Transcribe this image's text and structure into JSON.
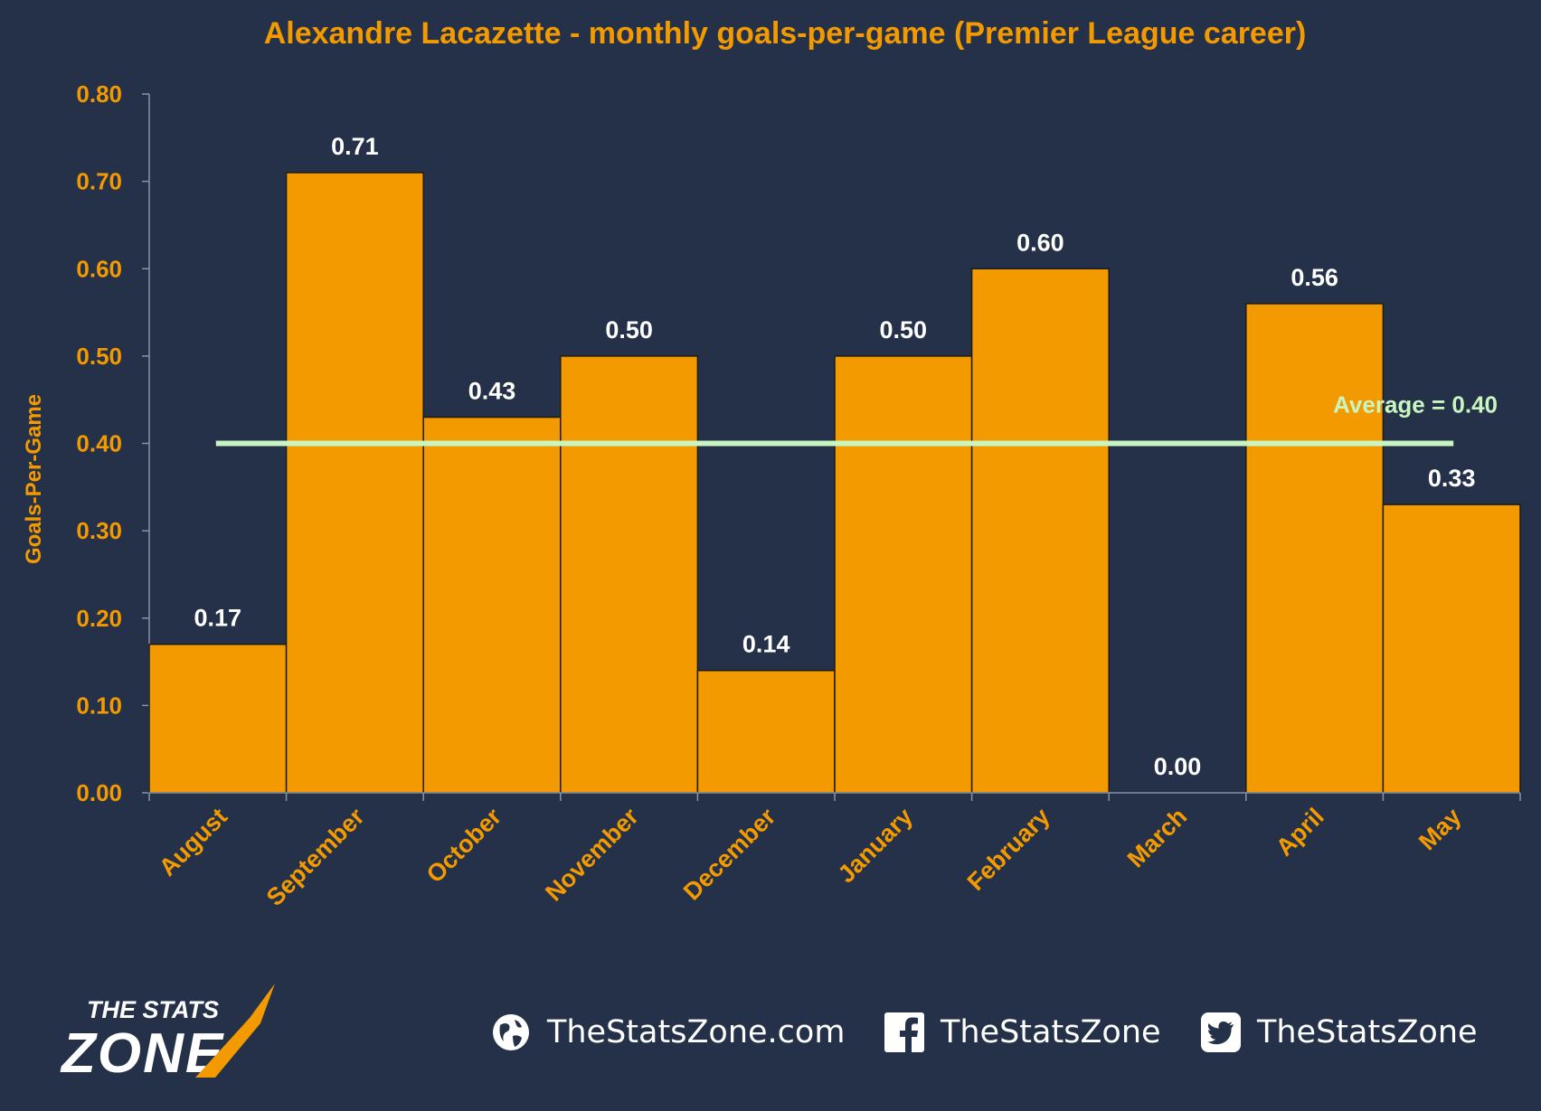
{
  "chart_data": {
    "type": "bar",
    "title": "Alexandre Lacazette - monthly goals-per-game (Premier League career)",
    "xlabel": "",
    "ylabel": "Goals-Per-Game",
    "categories": [
      "August",
      "September",
      "October",
      "November",
      "December",
      "January",
      "February",
      "March",
      "April",
      "May"
    ],
    "values": [
      0.17,
      0.71,
      0.43,
      0.5,
      0.14,
      0.5,
      0.6,
      0.0,
      0.56,
      0.33
    ],
    "value_labels": [
      "0.17",
      "0.71",
      "0.43",
      "0.50",
      "0.14",
      "0.50",
      "0.60",
      "0.00",
      "0.56",
      "0.33"
    ],
    "ylim": [
      0,
      0.8
    ],
    "yticks": [
      "0.00",
      "0.10",
      "0.20",
      "0.30",
      "0.40",
      "0.50",
      "0.60",
      "0.70",
      "0.80"
    ],
    "average": 0.4,
    "average_label": "Average = 0.40",
    "grid": false,
    "colors": {
      "background": "#243149",
      "bar": "#f39a00",
      "bar_edge": "#1b1b1b",
      "axis_text": "#f39a00",
      "value_label": "#ffffff",
      "average_line": "#c8f5c0",
      "axis_line": "#8a93a3"
    }
  },
  "footer": {
    "brand_top": "THE STATS",
    "brand_bottom": "ZONE",
    "website": "TheStatsZone.com",
    "facebook": "TheStatsZone",
    "twitter": "TheStatsZone",
    "icons": [
      "globe-icon",
      "facebook-icon",
      "twitter-icon"
    ]
  }
}
